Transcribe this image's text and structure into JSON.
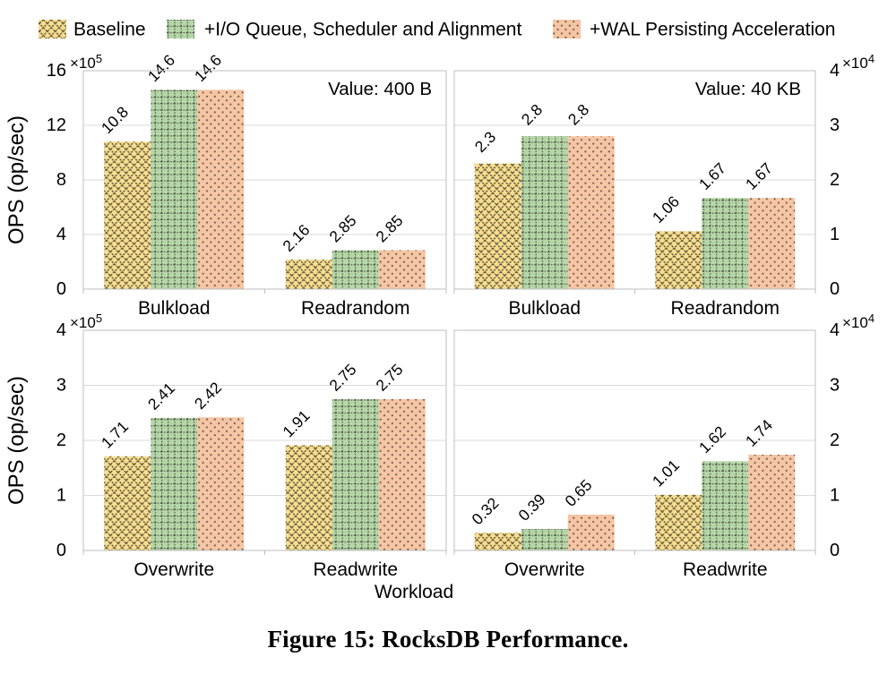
{
  "figure": {
    "caption": "Figure 15: RocksDB Performance.",
    "xlabel": "Workload",
    "ylabel": "OPS (op/sec)"
  },
  "legend": {
    "items": [
      {
        "label": "Baseline",
        "pattern": "crosshatch",
        "fill": "#F8DE8D",
        "stroke": "#4D4738"
      },
      {
        "label": "+I/O Queue, Scheduler and Alignment",
        "pattern": "dotted-grid",
        "fill": "#B5D6A7",
        "stroke": "#454C3C"
      },
      {
        "label": "+WAL Persisting Acceleration",
        "pattern": "dots",
        "fill": "#F6C5A3",
        "stroke": "#575046"
      }
    ]
  },
  "chart_data": [
    {
      "id": "reads-value-400b",
      "type": "bar",
      "annotation": "Value: 400 B",
      "ylabel": "OPS (op/sec)",
      "axis_side": "left",
      "y_multiplier": {
        "mantissa": "×10",
        "exponent": "5"
      },
      "ylim": [
        0,
        16
      ],
      "yticks": [
        0,
        4,
        8,
        12,
        16
      ],
      "grid": true,
      "categories": [
        "Bulkload",
        "Readrandom"
      ],
      "series": [
        {
          "name": "Baseline",
          "values": [
            10.8,
            2.16
          ]
        },
        {
          "name": "+I/O Queue, Scheduler and Alignment",
          "values": [
            14.6,
            2.85
          ]
        },
        {
          "name": "+WAL Persisting Acceleration",
          "values": [
            14.6,
            2.85
          ]
        }
      ]
    },
    {
      "id": "reads-value-40kb",
      "type": "bar",
      "annotation": "Value: 40 KB",
      "ylabel": "",
      "axis_side": "right",
      "y_multiplier": {
        "mantissa": "×10",
        "exponent": "4"
      },
      "ylim": [
        0,
        4
      ],
      "yticks": [
        0,
        1,
        2,
        3,
        4
      ],
      "grid": true,
      "categories": [
        "Bulkload",
        "Readrandom"
      ],
      "series": [
        {
          "name": "Baseline",
          "values": [
            2.3,
            1.06
          ]
        },
        {
          "name": "+I/O Queue, Scheduler and Alignment",
          "values": [
            2.8,
            1.67
          ]
        },
        {
          "name": "+WAL Persisting Acceleration",
          "values": [
            2.8,
            1.67
          ]
        }
      ]
    },
    {
      "id": "writes-value-400b",
      "type": "bar",
      "annotation": "",
      "ylabel": "OPS (op/sec)",
      "axis_side": "left",
      "y_multiplier": {
        "mantissa": "×10",
        "exponent": "5"
      },
      "ylim": [
        0,
        4
      ],
      "yticks": [
        0,
        1,
        2,
        3,
        4
      ],
      "grid": true,
      "categories": [
        "Overwrite",
        "Readwrite"
      ],
      "series": [
        {
          "name": "Baseline",
          "values": [
            1.71,
            1.91
          ]
        },
        {
          "name": "+I/O Queue, Scheduler and Alignment",
          "values": [
            2.41,
            2.75
          ]
        },
        {
          "name": "+WAL Persisting Acceleration",
          "values": [
            2.42,
            2.75
          ]
        }
      ]
    },
    {
      "id": "writes-value-40kb",
      "type": "bar",
      "annotation": "",
      "ylabel": "",
      "axis_side": "right",
      "y_multiplier": {
        "mantissa": "×10",
        "exponent": "4"
      },
      "ylim": [
        0,
        4
      ],
      "yticks": [
        0,
        1,
        2,
        3,
        4
      ],
      "grid": true,
      "categories": [
        "Overwrite",
        "Readwrite"
      ],
      "series": [
        {
          "name": "Baseline",
          "values": [
            0.32,
            1.01
          ]
        },
        {
          "name": "+I/O Queue, Scheduler and Alignment",
          "values": [
            0.39,
            1.62
          ]
        },
        {
          "name": "+WAL Persisting Acceleration",
          "values": [
            0.65,
            1.74
          ]
        }
      ]
    }
  ]
}
